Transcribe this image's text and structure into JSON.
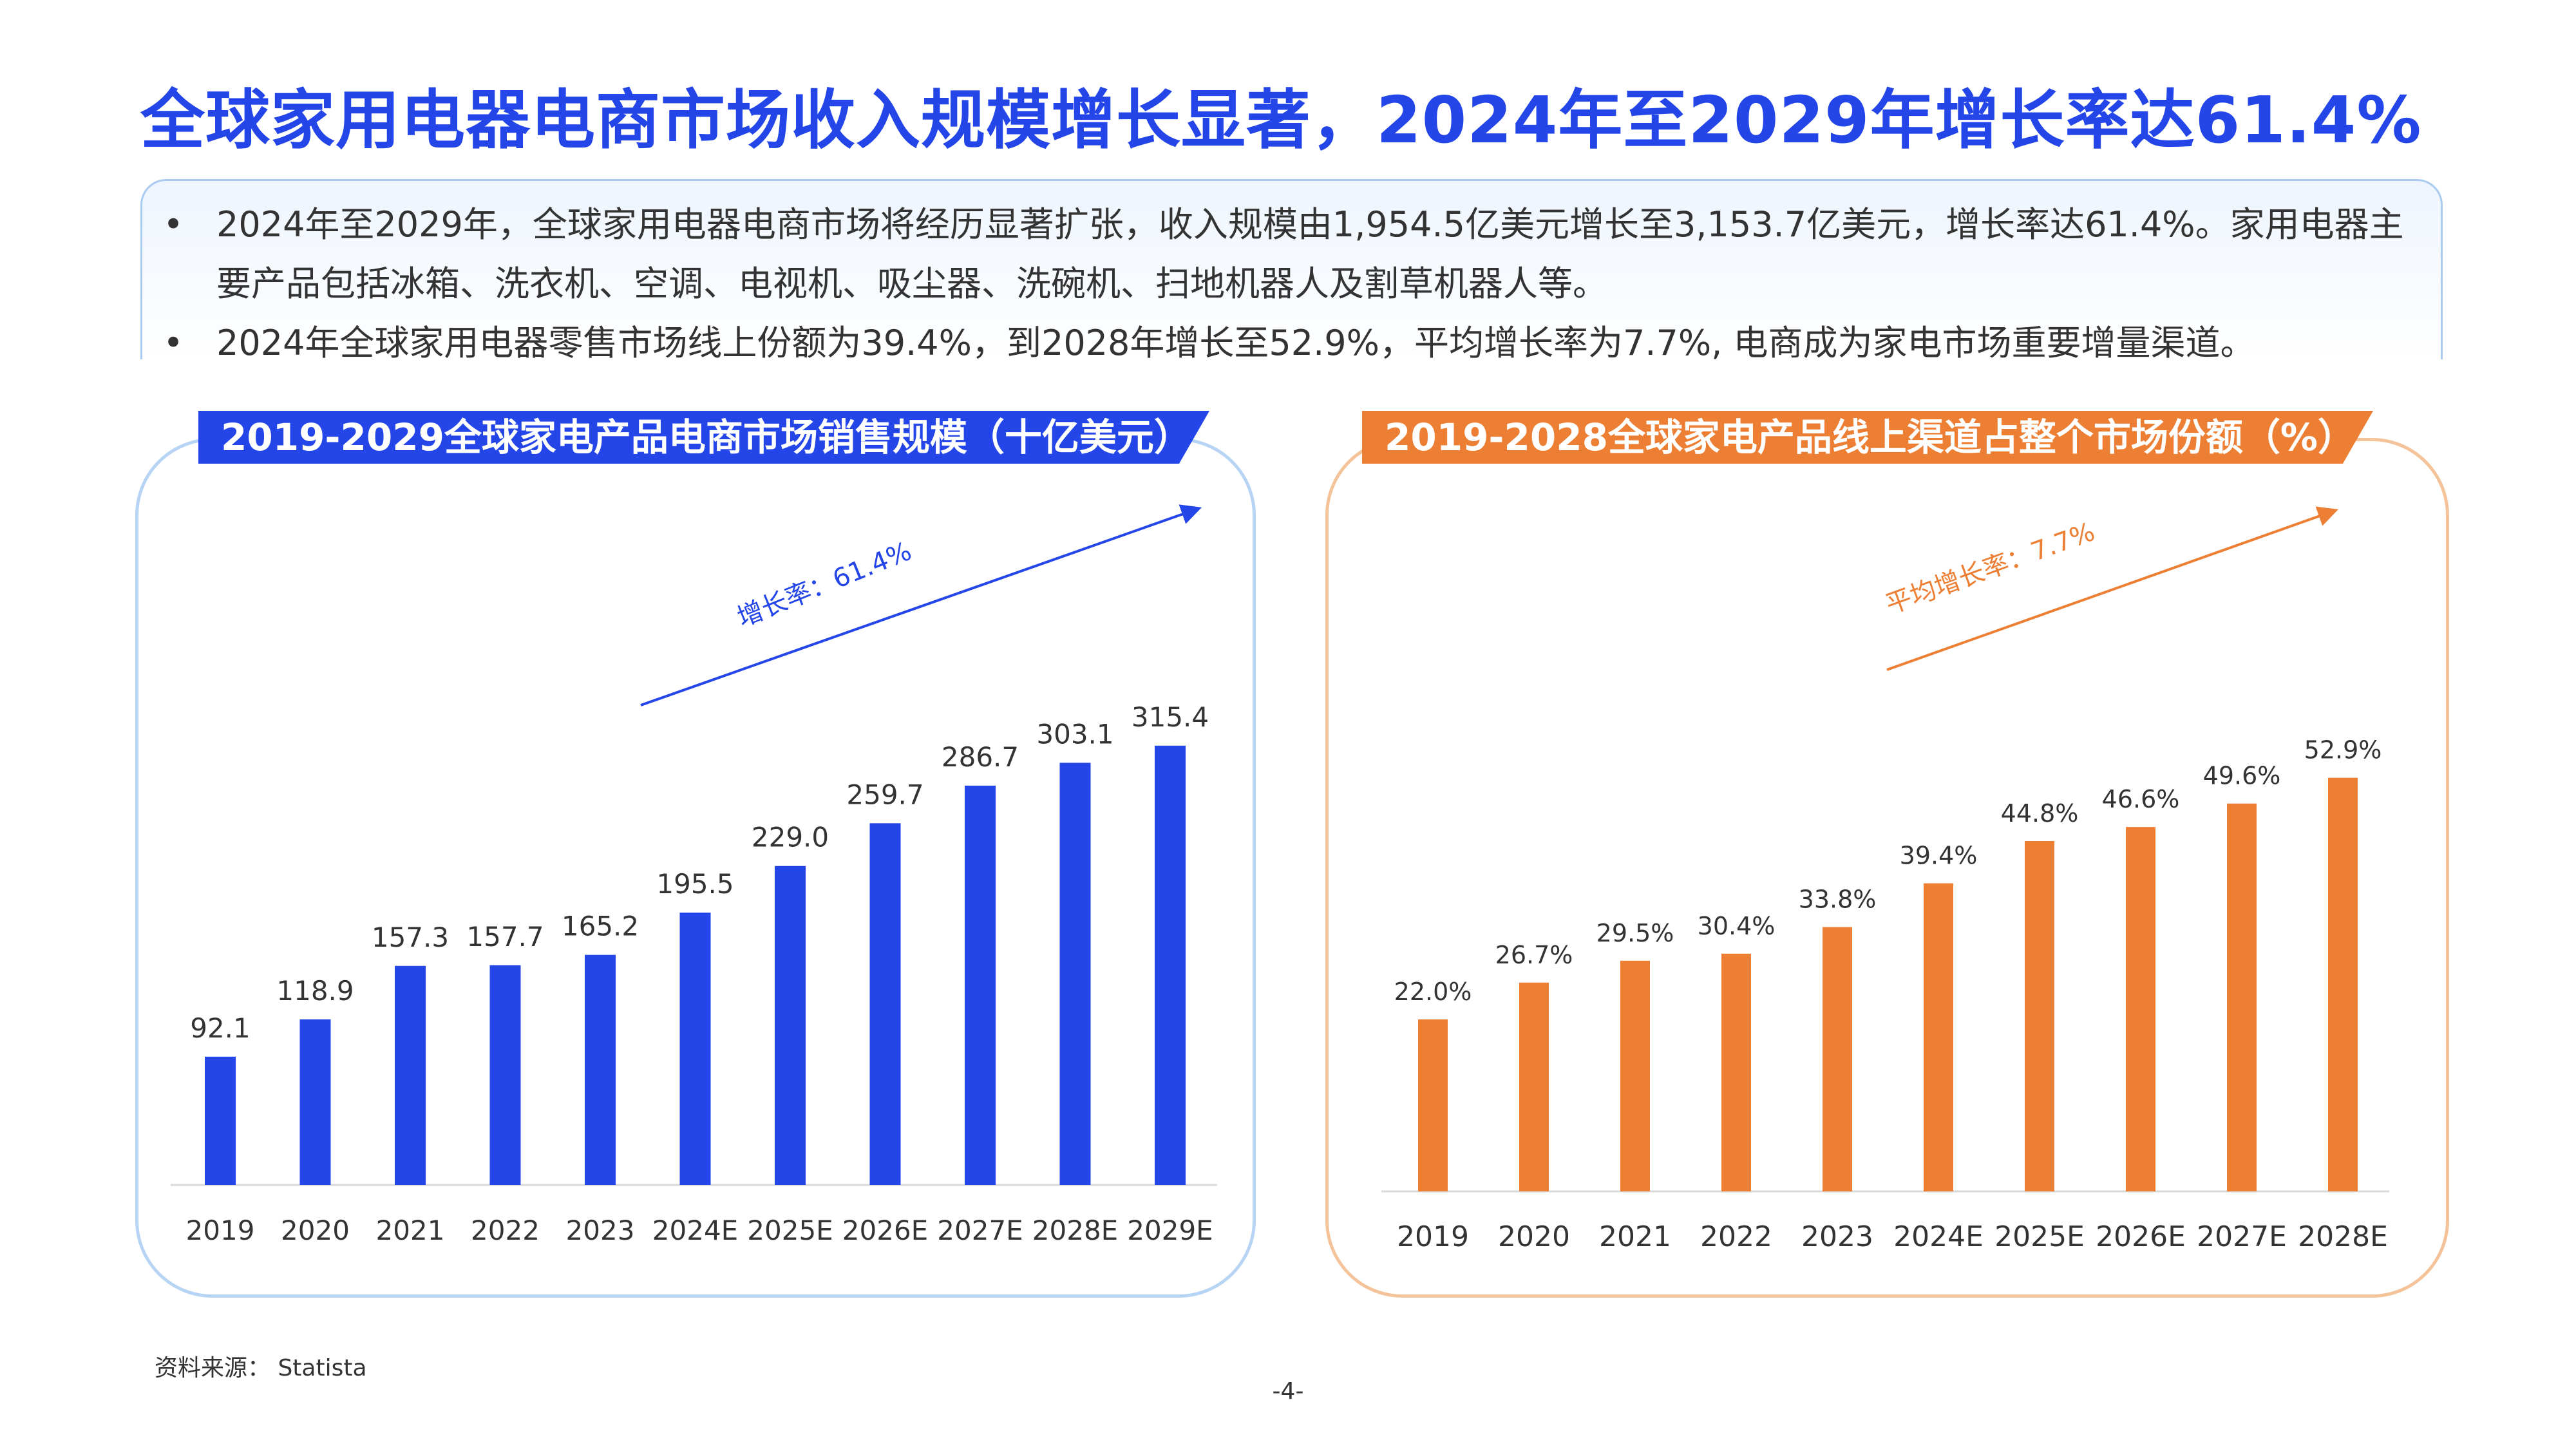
{
  "title": "全球家用电器电商市场收入规模增长显著，2024年至2029年增长率达61.4%",
  "summary": {
    "bullet": "•",
    "items": [
      "2024年至2029年，全球家用电器电商市场将经历显著扩张，收入规模由1,954.5亿美元增长至3,153.7亿美元，增长率达61.4%。家用电器主要产品包括冰箱、洗衣机、空调、电视机、吸尘器、洗碗机、扫地机器人及割草机器人等。",
      "2024年全球家用电器零售市场线上份额为39.4%，到2028年增长至52.9%，平均增长率为7.7%, 电商成为家电市场重要增量渠道。"
    ]
  },
  "colors": {
    "blue": "#2446e8",
    "orange": "#ec7f34"
  },
  "chart_data": [
    {
      "type": "bar",
      "title": "2019-2029全球家电产品电商市场销售规模（十亿美元）",
      "categories": [
        "2019",
        "2020",
        "2021",
        "2022",
        "2023",
        "2024E",
        "2025E",
        "2026E",
        "2027E",
        "2028E",
        "2029E"
      ],
      "values": [
        92.1,
        118.9,
        157.3,
        157.7,
        165.2,
        195.5,
        229.0,
        259.7,
        286.7,
        303.1,
        315.4
      ],
      "labels": [
        "92.1",
        "118.9",
        "157.3",
        "157.7",
        "165.2",
        "195.5",
        "229.0",
        "259.7",
        "286.7",
        "303.1",
        "315.4"
      ],
      "ylim": [
        0,
        430
      ],
      "grid": false,
      "color": "#2446e8",
      "annotation": "增长率：61.4%"
    },
    {
      "type": "bar",
      "title": "2019-2028全球家电产品线上渠道占整个市场份额（%）",
      "categories": [
        "2019",
        "2020",
        "2021",
        "2022",
        "2023",
        "2024E",
        "2025E",
        "2026E",
        "2027E",
        "2028E"
      ],
      "values": [
        22.0,
        26.7,
        29.5,
        30.4,
        33.8,
        39.4,
        44.8,
        46.6,
        49.6,
        52.9
      ],
      "labels": [
        "22.0%",
        "26.7%",
        "29.5%",
        "30.4%",
        "33.8%",
        "39.4%",
        "44.8%",
        "46.6%",
        "49.6%",
        "52.9%"
      ],
      "ylim": [
        0,
        70
      ],
      "grid": false,
      "color": "#ec7f34",
      "annotation": "平均增长率：7.7%"
    }
  ],
  "footer": {
    "source": "资料来源：   Statista",
    "page": "-4-"
  }
}
